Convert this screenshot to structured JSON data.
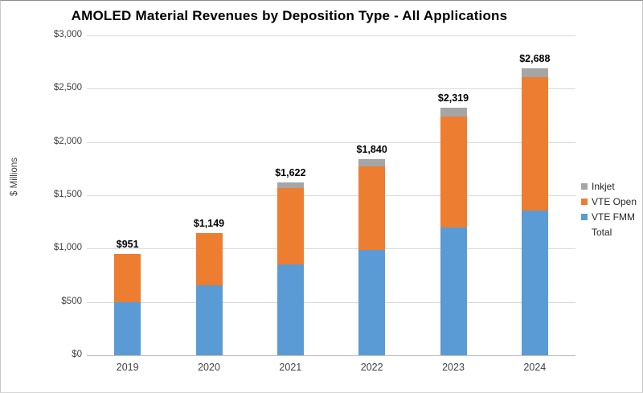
{
  "chart_data": {
    "type": "bar",
    "stacked": true,
    "title": "AMOLED Material Revenues by Deposition Type - All Applications",
    "xlabel": "",
    "ylabel": "$ Millions",
    "categories": [
      "2019",
      "2020",
      "2021",
      "2022",
      "2023",
      "2024"
    ],
    "series": [
      {
        "name": "VTE FMM",
        "color": "#5B9BD5",
        "values": [
          495,
          655,
          850,
          990,
          1200,
          1355
        ]
      },
      {
        "name": "VTE Open",
        "color": "#ED7D31",
        "values": [
          456,
          494,
          718,
          781,
          1040,
          1253
        ]
      },
      {
        "name": "Inkjet",
        "color": "#A5A5A5",
        "values": [
          0,
          0,
          54,
          69,
          79,
          80
        ]
      }
    ],
    "totals": [
      951,
      1149,
      1622,
      1840,
      2319,
      2688
    ],
    "total_labels": [
      "$951",
      "$1,149",
      "$1,622",
      "$1,840",
      "$2,319",
      "$2,688"
    ],
    "y_ticks": [
      {
        "value": 0,
        "label": "$0"
      },
      {
        "value": 500,
        "label": "$500"
      },
      {
        "value": 1000,
        "label": "$1,000"
      },
      {
        "value": 1500,
        "label": "$1,500"
      },
      {
        "value": 2000,
        "label": "$2,000"
      },
      {
        "value": 2500,
        "label": "$2,500"
      },
      {
        "value": 3000,
        "label": "$3,000"
      }
    ],
    "ylim": [
      0,
      3000
    ],
    "grid": true,
    "legend": {
      "position": "right",
      "entries": [
        {
          "label": "Inkjet",
          "color": "#A5A5A5"
        },
        {
          "label": "VTE Open",
          "color": "#ED7D31"
        },
        {
          "label": "VTE FMM",
          "color": "#5B9BD5"
        },
        {
          "label": "Total",
          "color": null
        }
      ]
    },
    "colors": {
      "gridline": "#d9d9d9",
      "axis_line": "#bfbfbf",
      "tick_text": "#404040",
      "label_text": "#000000"
    }
  }
}
